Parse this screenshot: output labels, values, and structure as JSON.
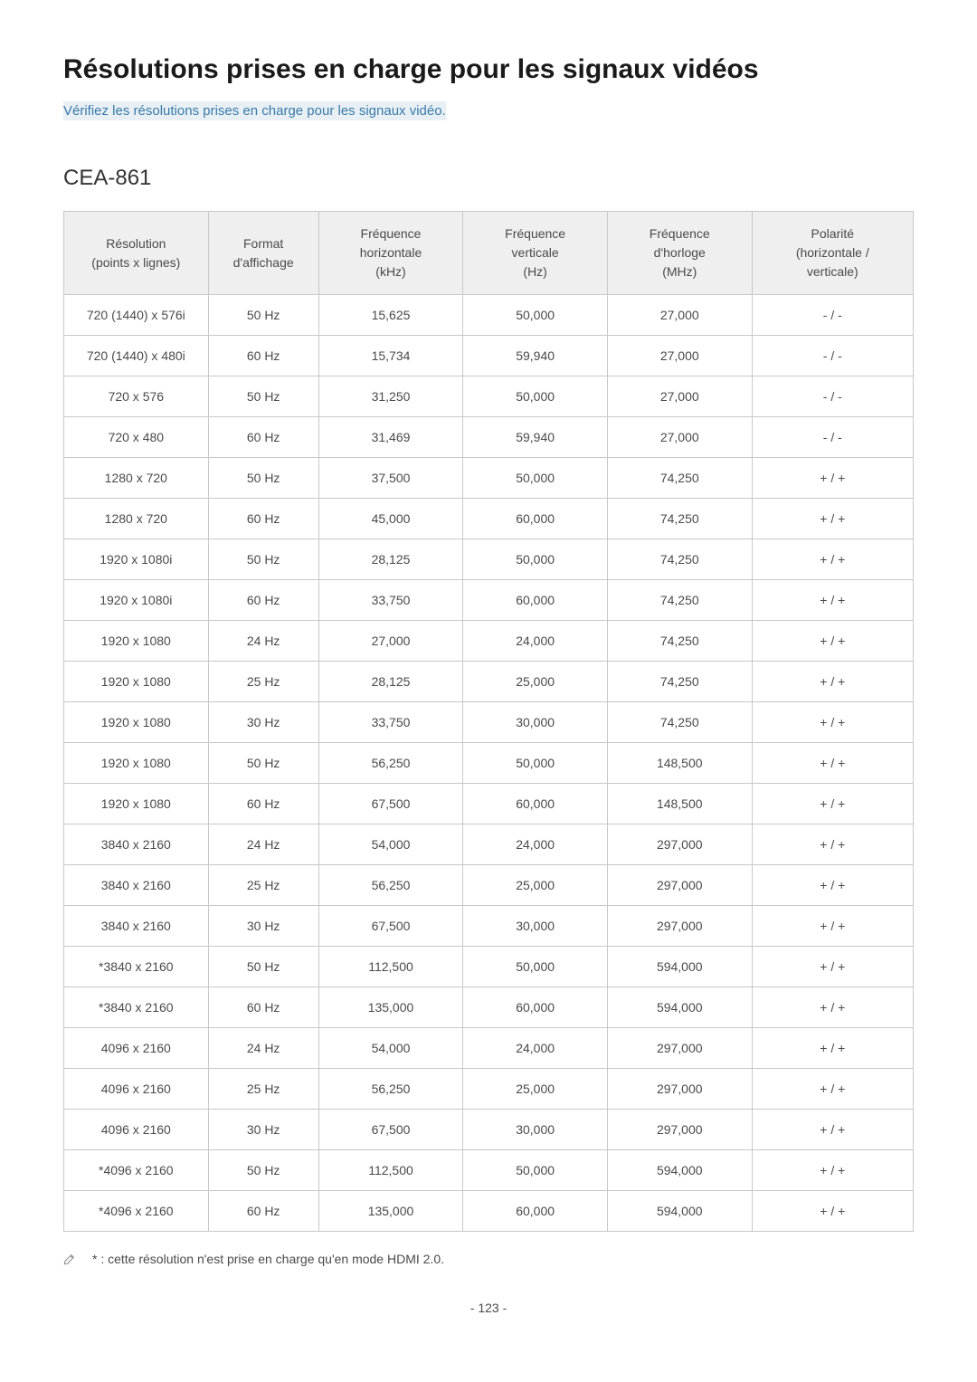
{
  "title": "Résolutions prises en charge pour les signaux vidéos",
  "subtitle": "Vérifiez les résolutions prises en charge pour les signaux vidéo.",
  "section_heading": "CEA-861",
  "table": {
    "columns": [
      {
        "line1": "Résolution",
        "line2": "(points x lignes)"
      },
      {
        "line1": "Format",
        "line2": "d'affichage"
      },
      {
        "line1": "Fréquence",
        "line2": "horizontale",
        "line3": "(kHz)"
      },
      {
        "line1": "Fréquence",
        "line2": "verticale",
        "line3": "(Hz)"
      },
      {
        "line1": "Fréquence",
        "line2": "d'horloge",
        "line3": "(MHz)"
      },
      {
        "line1": "Polarité",
        "line2": "(horizontale /",
        "line3": "verticale)"
      }
    ],
    "rows": [
      [
        "720 (1440) x 576i",
        "50 Hz",
        "15,625",
        "50,000",
        "27,000",
        "- / -"
      ],
      [
        "720 (1440) x 480i",
        "60 Hz",
        "15,734",
        "59,940",
        "27,000",
        "- / -"
      ],
      [
        "720 x 576",
        "50 Hz",
        "31,250",
        "50,000",
        "27,000",
        "- / -"
      ],
      [
        "720 x 480",
        "60 Hz",
        "31,469",
        "59,940",
        "27,000",
        "- / -"
      ],
      [
        "1280 x 720",
        "50 Hz",
        "37,500",
        "50,000",
        "74,250",
        "+ / +"
      ],
      [
        "1280 x 720",
        "60 Hz",
        "45,000",
        "60,000",
        "74,250",
        "+ / +"
      ],
      [
        "1920 x 1080i",
        "50 Hz",
        "28,125",
        "50,000",
        "74,250",
        "+ / +"
      ],
      [
        "1920 x 1080i",
        "60 Hz",
        "33,750",
        "60,000",
        "74,250",
        "+ / +"
      ],
      [
        "1920 x 1080",
        "24 Hz",
        "27,000",
        "24,000",
        "74,250",
        "+ / +"
      ],
      [
        "1920 x 1080",
        "25 Hz",
        "28,125",
        "25,000",
        "74,250",
        "+ / +"
      ],
      [
        "1920 x 1080",
        "30 Hz",
        "33,750",
        "30,000",
        "74,250",
        "+ / +"
      ],
      [
        "1920 x 1080",
        "50 Hz",
        "56,250",
        "50,000",
        "148,500",
        "+ / +"
      ],
      [
        "1920 x 1080",
        "60 Hz",
        "67,500",
        "60,000",
        "148,500",
        "+ / +"
      ],
      [
        "3840 x 2160",
        "24 Hz",
        "54,000",
        "24,000",
        "297,000",
        "+ / +"
      ],
      [
        "3840 x 2160",
        "25 Hz",
        "56,250",
        "25,000",
        "297,000",
        "+ / +"
      ],
      [
        "3840 x 2160",
        "30 Hz",
        "67,500",
        "30,000",
        "297,000",
        "+ / +"
      ],
      [
        "*3840 x 2160",
        "50 Hz",
        "112,500",
        "50,000",
        "594,000",
        "+ / +"
      ],
      [
        "*3840 x 2160",
        "60 Hz",
        "135,000",
        "60,000",
        "594,000",
        "+ / +"
      ],
      [
        "4096 x 2160",
        "24 Hz",
        "54,000",
        "24,000",
        "297,000",
        "+ / +"
      ],
      [
        "4096 x 2160",
        "25 Hz",
        "56,250",
        "25,000",
        "297,000",
        "+ / +"
      ],
      [
        "4096 x 2160",
        "30 Hz",
        "67,500",
        "30,000",
        "297,000",
        "+ / +"
      ],
      [
        "*4096 x 2160",
        "50 Hz",
        "112,500",
        "50,000",
        "594,000",
        "+ / +"
      ],
      [
        "*4096 x 2160",
        "60 Hz",
        "135,000",
        "60,000",
        "594,000",
        "+ / +"
      ]
    ]
  },
  "footnote": "* : cette résolution n'est prise en charge qu'en mode HDMI 2.0.",
  "page_number": "- 123 -",
  "colors": {
    "header_bg": "#efefef",
    "border": "#c8c8c8",
    "subtitle_bg": "#e8f0f5",
    "subtitle_fg": "#3a7aa8"
  }
}
